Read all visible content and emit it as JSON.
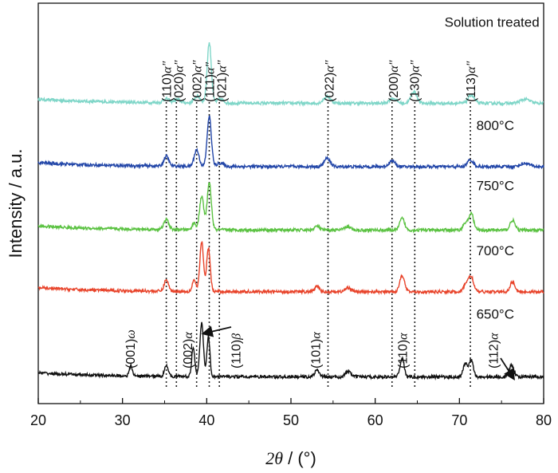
{
  "chart_data": {
    "type": "line",
    "title": "",
    "xlabel": {
      "symbol": "2θ",
      "unit": " / (°)"
    },
    "ylabel": "Intensity / a.u.",
    "xlim": [
      20,
      80
    ],
    "xticks": [
      "20",
      "30",
      "40",
      "50",
      "60",
      "70",
      "80"
    ],
    "grid": false,
    "series": [
      {
        "name": "Solution treated",
        "color": "#7fd6c8",
        "baseline": 0.9,
        "peaks": [
          [
            35.2,
            0.012,
            0.5
          ],
          [
            36.5,
            0.01,
            0.5
          ],
          [
            38.9,
            0.02,
            0.5
          ],
          [
            40.3,
            0.18,
            0.35
          ],
          [
            41.6,
            0.012,
            0.5
          ],
          [
            54.3,
            0.02,
            0.6
          ],
          [
            62.1,
            0.015,
            0.6
          ],
          [
            64.6,
            0.035,
            0.5
          ],
          [
            71.4,
            0.025,
            0.5
          ],
          [
            77.8,
            0.012,
            0.8
          ]
        ]
      },
      {
        "name": "800°C",
        "color": "#2246a8",
        "baseline": 0.71,
        "peaks": [
          [
            35.2,
            0.03,
            0.4
          ],
          [
            38.8,
            0.05,
            0.4
          ],
          [
            40.3,
            0.15,
            0.35
          ],
          [
            41.6,
            0.01,
            0.5
          ],
          [
            54.3,
            0.025,
            0.5
          ],
          [
            62.0,
            0.018,
            0.5
          ],
          [
            71.3,
            0.02,
            0.5
          ],
          [
            77.8,
            0.01,
            0.8
          ]
        ]
      },
      {
        "name": "750°C",
        "color": "#5bc242",
        "baseline": 0.52,
        "peaks": [
          [
            35.2,
            0.03,
            0.4
          ],
          [
            38.5,
            0.02,
            0.3
          ],
          [
            39.4,
            0.1,
            0.35
          ],
          [
            40.3,
            0.14,
            0.35
          ],
          [
            53.1,
            0.012,
            0.4
          ],
          [
            56.7,
            0.01,
            0.5
          ],
          [
            63.2,
            0.035,
            0.4
          ],
          [
            70.7,
            0.02,
            0.4
          ],
          [
            71.4,
            0.05,
            0.4
          ],
          [
            76.3,
            0.03,
            0.4
          ]
        ]
      },
      {
        "name": "700°C",
        "color": "#e8432a",
        "baseline": 0.335,
        "peaks": [
          [
            35.2,
            0.035,
            0.35
          ],
          [
            38.5,
            0.035,
            0.3
          ],
          [
            39.4,
            0.15,
            0.3
          ],
          [
            40.2,
            0.13,
            0.3
          ],
          [
            53.1,
            0.015,
            0.4
          ],
          [
            56.8,
            0.012,
            0.5
          ],
          [
            63.2,
            0.05,
            0.4
          ],
          [
            70.8,
            0.025,
            0.4
          ],
          [
            71.4,
            0.045,
            0.4
          ],
          [
            76.3,
            0.03,
            0.4
          ]
        ]
      },
      {
        "name": "650°C",
        "color": "#111111",
        "baseline": 0.08,
        "peaks": [
          [
            31.0,
            0.03,
            0.25
          ],
          [
            35.2,
            0.035,
            0.3
          ],
          [
            38.4,
            0.09,
            0.25
          ],
          [
            39.4,
            0.16,
            0.3
          ],
          [
            40.2,
            0.12,
            0.25
          ],
          [
            53.1,
            0.02,
            0.4
          ],
          [
            56.8,
            0.015,
            0.5
          ],
          [
            63.2,
            0.055,
            0.35
          ],
          [
            70.7,
            0.04,
            0.35
          ],
          [
            71.4,
            0.05,
            0.35
          ],
          [
            76.2,
            0.035,
            0.4
          ]
        ]
      }
    ],
    "series_labels": [
      {
        "text": "Solution treated",
        "x": 79.5,
        "y": 1.13
      },
      {
        "text": "800°C",
        "x": 76.5,
        "y": 0.82
      },
      {
        "text": "750°C",
        "x": 76.5,
        "y": 0.64
      },
      {
        "text": "700°C",
        "x": 76.5,
        "y": 0.445
      },
      {
        "text": "650°C",
        "x": 76.5,
        "y": 0.255
      }
    ],
    "reference_lines": [
      35.2,
      36.4,
      38.8,
      40.3,
      41.5,
      54.4,
      62.0,
      64.7,
      71.3
    ],
    "annotations_top": [
      {
        "label": "(110)",
        "phase": "α″",
        "x": 35.2
      },
      {
        "label": "(020)",
        "phase": "α″",
        "x": 36.6
      },
      {
        "label": "(002)",
        "phase": "α″",
        "x": 38.8
      },
      {
        "label": "(111)",
        "phase": "α″",
        "x": 40.3
      },
      {
        "label": "(021)",
        "phase": "α″",
        "x": 41.7
      },
      {
        "label": "(022)",
        "phase": "α″",
        "x": 54.5
      },
      {
        "label": "(200)",
        "phase": "α″",
        "x": 62.1
      },
      {
        "label": "(130)",
        "phase": "α″",
        "x": 64.6
      },
      {
        "label": "(113)",
        "phase": "α″",
        "x": 71.3
      }
    ],
    "annotations_bottom": [
      {
        "label": "(001)",
        "phase": "ω",
        "x": 30.9
      },
      {
        "label": "(002)",
        "phase": "α",
        "x": 37.7
      },
      {
        "label": "(110)",
        "phase": "β",
        "x": 43.4
      },
      {
        "label": "(101)",
        "phase": "α",
        "x": 52.9
      },
      {
        "label": "(110)",
        "phase": "α",
        "x": 63.2
      },
      {
        "label": "(112)",
        "phase": "α",
        "x": 74.0
      }
    ]
  }
}
